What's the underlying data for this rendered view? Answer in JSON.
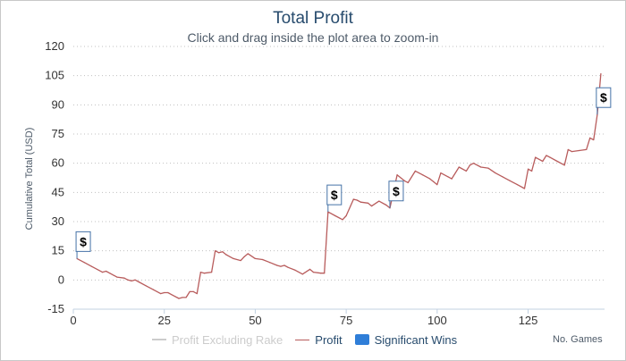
{
  "chart_data": {
    "type": "line",
    "title": "Total Profit",
    "subtitle": "Click and drag inside the plot area to zoom-in",
    "xlabel": "No. Games",
    "ylabel": "Cumulative Total (USD)",
    "xlim": [
      0,
      146
    ],
    "ylim": [
      -15,
      120
    ],
    "x_ticks": [
      0,
      25,
      50,
      75,
      100,
      125
    ],
    "y_ticks": [
      -15,
      0,
      15,
      30,
      45,
      60,
      75,
      90,
      105,
      120
    ],
    "grid": true,
    "legend_position": "bottom",
    "series": [
      {
        "name": "Profit Excluding Rake",
        "hidden": true,
        "color": "#cccccc",
        "x": [],
        "y": []
      },
      {
        "name": "Profit",
        "color": "#b85c5c",
        "x": [
          1,
          3,
          5,
          7,
          8,
          9,
          10,
          12,
          14,
          15,
          16,
          17,
          18,
          20,
          22,
          24,
          25,
          26,
          27,
          29,
          30,
          31,
          32,
          33,
          34,
          35,
          36,
          38,
          39,
          40,
          41,
          42,
          44,
          46,
          47,
          48,
          50,
          52,
          54,
          56,
          57,
          58,
          59,
          61,
          63,
          65,
          66,
          68,
          69,
          70,
          72,
          74,
          75,
          77,
          78,
          79,
          81,
          82,
          84,
          86,
          87,
          89,
          91,
          92,
          94,
          96,
          98,
          99,
          100,
          101,
          103,
          104,
          106,
          108,
          109,
          110,
          112,
          114,
          116,
          118,
          120,
          122,
          124,
          125,
          126,
          127,
          128,
          129,
          130,
          131,
          133,
          135,
          136,
          137,
          139,
          141,
          142,
          143,
          144,
          145
        ],
        "y": [
          11,
          9,
          7,
          5,
          4,
          4.5,
          3.5,
          1.5,
          1,
          0,
          -0.5,
          0,
          -1,
          -3,
          -5,
          -7,
          -6.5,
          -6.5,
          -7.5,
          -9.5,
          -9,
          -9,
          -6,
          -6,
          -7,
          4,
          3.5,
          4,
          15,
          14,
          14.5,
          13,
          11,
          10,
          12,
          13.5,
          11,
          10.5,
          9,
          7.5,
          7,
          7.5,
          6.5,
          5,
          3,
          5.5,
          4,
          3.5,
          3.5,
          35,
          33,
          31,
          33,
          41.5,
          41,
          40,
          39.5,
          38,
          40.5,
          38.5,
          37,
          54,
          51,
          50,
          56,
          54,
          52,
          50.5,
          49,
          55,
          53,
          52,
          58,
          56,
          59,
          60,
          58,
          57.5,
          55,
          53,
          51,
          49,
          47,
          57,
          56,
          63,
          62,
          61,
          64,
          63,
          61,
          59,
          67,
          66,
          66.5,
          67,
          73,
          72,
          85,
          106
        ]
      }
    ],
    "flags": [
      {
        "name": "Significant Wins",
        "text": "$",
        "x": [
          1,
          70,
          87,
          144
        ],
        "color": "#4572a7"
      }
    ]
  },
  "legend": {
    "items": [
      {
        "label": "Profit Excluding Rake"
      },
      {
        "label": "Profit"
      },
      {
        "label": "Significant Wins"
      }
    ]
  },
  "colors": {
    "profit_line": "#b85c5c",
    "hidden_series": "#cccccc",
    "flag_border": "#4572a7",
    "flag_fill": "#ffffff",
    "legend_flag_box": "#2f7ed8",
    "title": "#274b6d"
  }
}
